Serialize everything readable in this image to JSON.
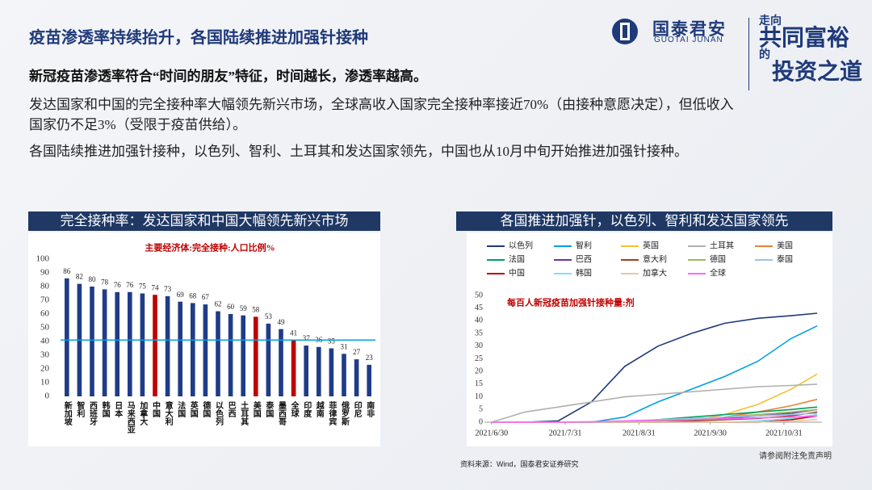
{
  "header": {
    "title": "疫苗渗透率持续抬升，各国陆续推进加强针接种",
    "logo_cn": "国泰君安",
    "logo_en": "GUOTAI JUNAN",
    "slogan": [
      "走向",
      "共同富裕",
      "的",
      "投资之道"
    ]
  },
  "lead": "新冠疫苗渗透率符合“时间的朋友”特征，时间越长，渗透率越高。",
  "paragraphs": [
    "发达国家和中国的完全接种率大幅领先新兴市场，全球高收入国家完全接种率接近70%（由接种意愿决定），但低收入国家仍不足3%（受限于疫苗供给）。",
    "各国陆续推进加强针接种，以色列、智利、土耳其和发达国家领先，中国也从10月中旬开始推进加强针接种。"
  ],
  "sections": [
    "完全接种率：发达国家和中国大幅领先新兴市场",
    "各国推进加强针，以色列、智利和发达国家领先"
  ],
  "footer": {
    "source": "资料来源：Wind，国泰君安证券研究",
    "disclaimer": "请参阅附注免责声明"
  },
  "chart_data": [
    {
      "type": "bar",
      "title": "主要经济体:完全接种:人口比例%",
      "categories": [
        "新加坡",
        "智利",
        "西班牙",
        "韩国",
        "日本",
        "马来西亚",
        "加拿大",
        "中国",
        "意大利",
        "法国",
        "英国",
        "德国",
        "以色列",
        "巴西",
        "土耳其",
        "美国",
        "泰国",
        "墨西哥",
        "全球",
        "印度",
        "越南",
        "菲律宾",
        "俄罗斯",
        "印尼",
        "南非"
      ],
      "values": [
        86,
        82,
        80,
        78,
        76,
        76,
        75,
        74,
        73,
        69,
        68,
        67,
        62,
        60,
        59,
        58,
        53,
        49,
        41,
        37,
        36,
        35,
        31,
        27,
        23
      ],
      "colors": [
        "#1f3c88",
        "#1f3c88",
        "#1f3c88",
        "#1f3c88",
        "#1f3c88",
        "#1f3c88",
        "#1f3c88",
        "#c00000",
        "#1f3c88",
        "#1f3c88",
        "#1f3c88",
        "#1f3c88",
        "#1f3c88",
        "#1f3c88",
        "#1f3c88",
        "#c00000",
        "#1f3c88",
        "#1f3c88",
        "#c00000",
        "#1f3c88",
        "#1f3c88",
        "#1f3c88",
        "#1f3c88",
        "#1f3c88",
        "#1f3c88"
      ],
      "hline": 41,
      "hline_color": "#00a0e0",
      "ylim": [
        0,
        100
      ],
      "yticks": [
        0,
        10,
        20,
        30,
        40,
        50,
        60,
        70,
        80,
        90,
        100
      ]
    },
    {
      "type": "line",
      "title": "每百人新冠疫苗加强针接种量:剂",
      "x": [
        "2021/6/30",
        "2021/7/14",
        "2021/7/28",
        "2021/8/11",
        "2021/8/25",
        "2021/9/8",
        "2021/9/22",
        "2021/10/6",
        "2021/10/20",
        "2021/11/3",
        "2021/11/14"
      ],
      "series": [
        {
          "name": "以色列",
          "color": "#1f3a7a",
          "values": [
            0,
            0,
            0.5,
            8,
            22,
            30,
            35,
            39,
            41,
            42,
            43
          ]
        },
        {
          "name": "智利",
          "color": "#00a0e0",
          "values": [
            0,
            0,
            0,
            0,
            2,
            8,
            13,
            18,
            24,
            33,
            38
          ]
        },
        {
          "name": "英国",
          "color": "#f5c030",
          "values": [
            0,
            0,
            0,
            0,
            0,
            0,
            0.5,
            3,
            7,
            13,
            19
          ]
        },
        {
          "name": "土耳其",
          "color": "#b0b0b0",
          "values": [
            0,
            4,
            6,
            8,
            10,
            11,
            12,
            13,
            14,
            14.5,
            15
          ]
        },
        {
          "name": "美国",
          "color": "#e8823a",
          "values": [
            0,
            0,
            0,
            0,
            0,
            0,
            0.5,
            2,
            4,
            6.5,
            9
          ]
        },
        {
          "name": "法国",
          "color": "#00a060",
          "values": [
            0,
            0,
            0,
            0,
            0,
            1,
            2,
            3,
            4,
            5,
            6
          ]
        },
        {
          "name": "巴西",
          "color": "#7030a0",
          "values": [
            0,
            0,
            0,
            0,
            0,
            0,
            0.5,
            1.5,
            2.5,
            3.5,
            5
          ]
        },
        {
          "name": "意大利",
          "color": "#a0401a",
          "values": [
            0,
            0,
            0,
            0,
            0,
            0,
            0.5,
            1,
            1.5,
            2.5,
            4
          ]
        },
        {
          "name": "德国",
          "color": "#9bbb59",
          "values": [
            0,
            0,
            0,
            0,
            0,
            0.5,
            1,
            2,
            3,
            4,
            5
          ]
        },
        {
          "name": "泰国",
          "color": "#9dc3e6",
          "values": [
            0,
            0,
            0,
            0,
            0.5,
            1,
            1.5,
            2,
            2.5,
            3,
            3.5
          ]
        },
        {
          "name": "中国",
          "color": "#c00000",
          "values": [
            0,
            0,
            0,
            0,
            0,
            0,
            0,
            0,
            0,
            1,
            2.5
          ]
        },
        {
          "name": "韩国",
          "color": "#7fdfff",
          "values": [
            0,
            0,
            0,
            0,
            0,
            0,
            0,
            0,
            0.5,
            1.5,
            3
          ]
        },
        {
          "name": "加拿大",
          "color": "#e8c8a0",
          "values": [
            0,
            0,
            0,
            0,
            0,
            0,
            0,
            0,
            0,
            0.5,
            1
          ]
        },
        {
          "name": "全球",
          "color": "#ff66ff",
          "values": [
            0,
            0,
            0,
            0.2,
            0.5,
            0.8,
            1,
            1.3,
            1.7,
            2,
            2.5
          ]
        }
      ],
      "xlim": [
        "2021/6/27",
        "2021/11/16"
      ],
      "xticks": [
        "2021/6/30",
        "2021/7/31",
        "2021/8/31",
        "2021/9/30",
        "2021/10/31"
      ],
      "ylim": [
        0,
        50
      ],
      "yticks": [
        0,
        5,
        10,
        15,
        20,
        25,
        30,
        35,
        40,
        45,
        50
      ]
    }
  ]
}
